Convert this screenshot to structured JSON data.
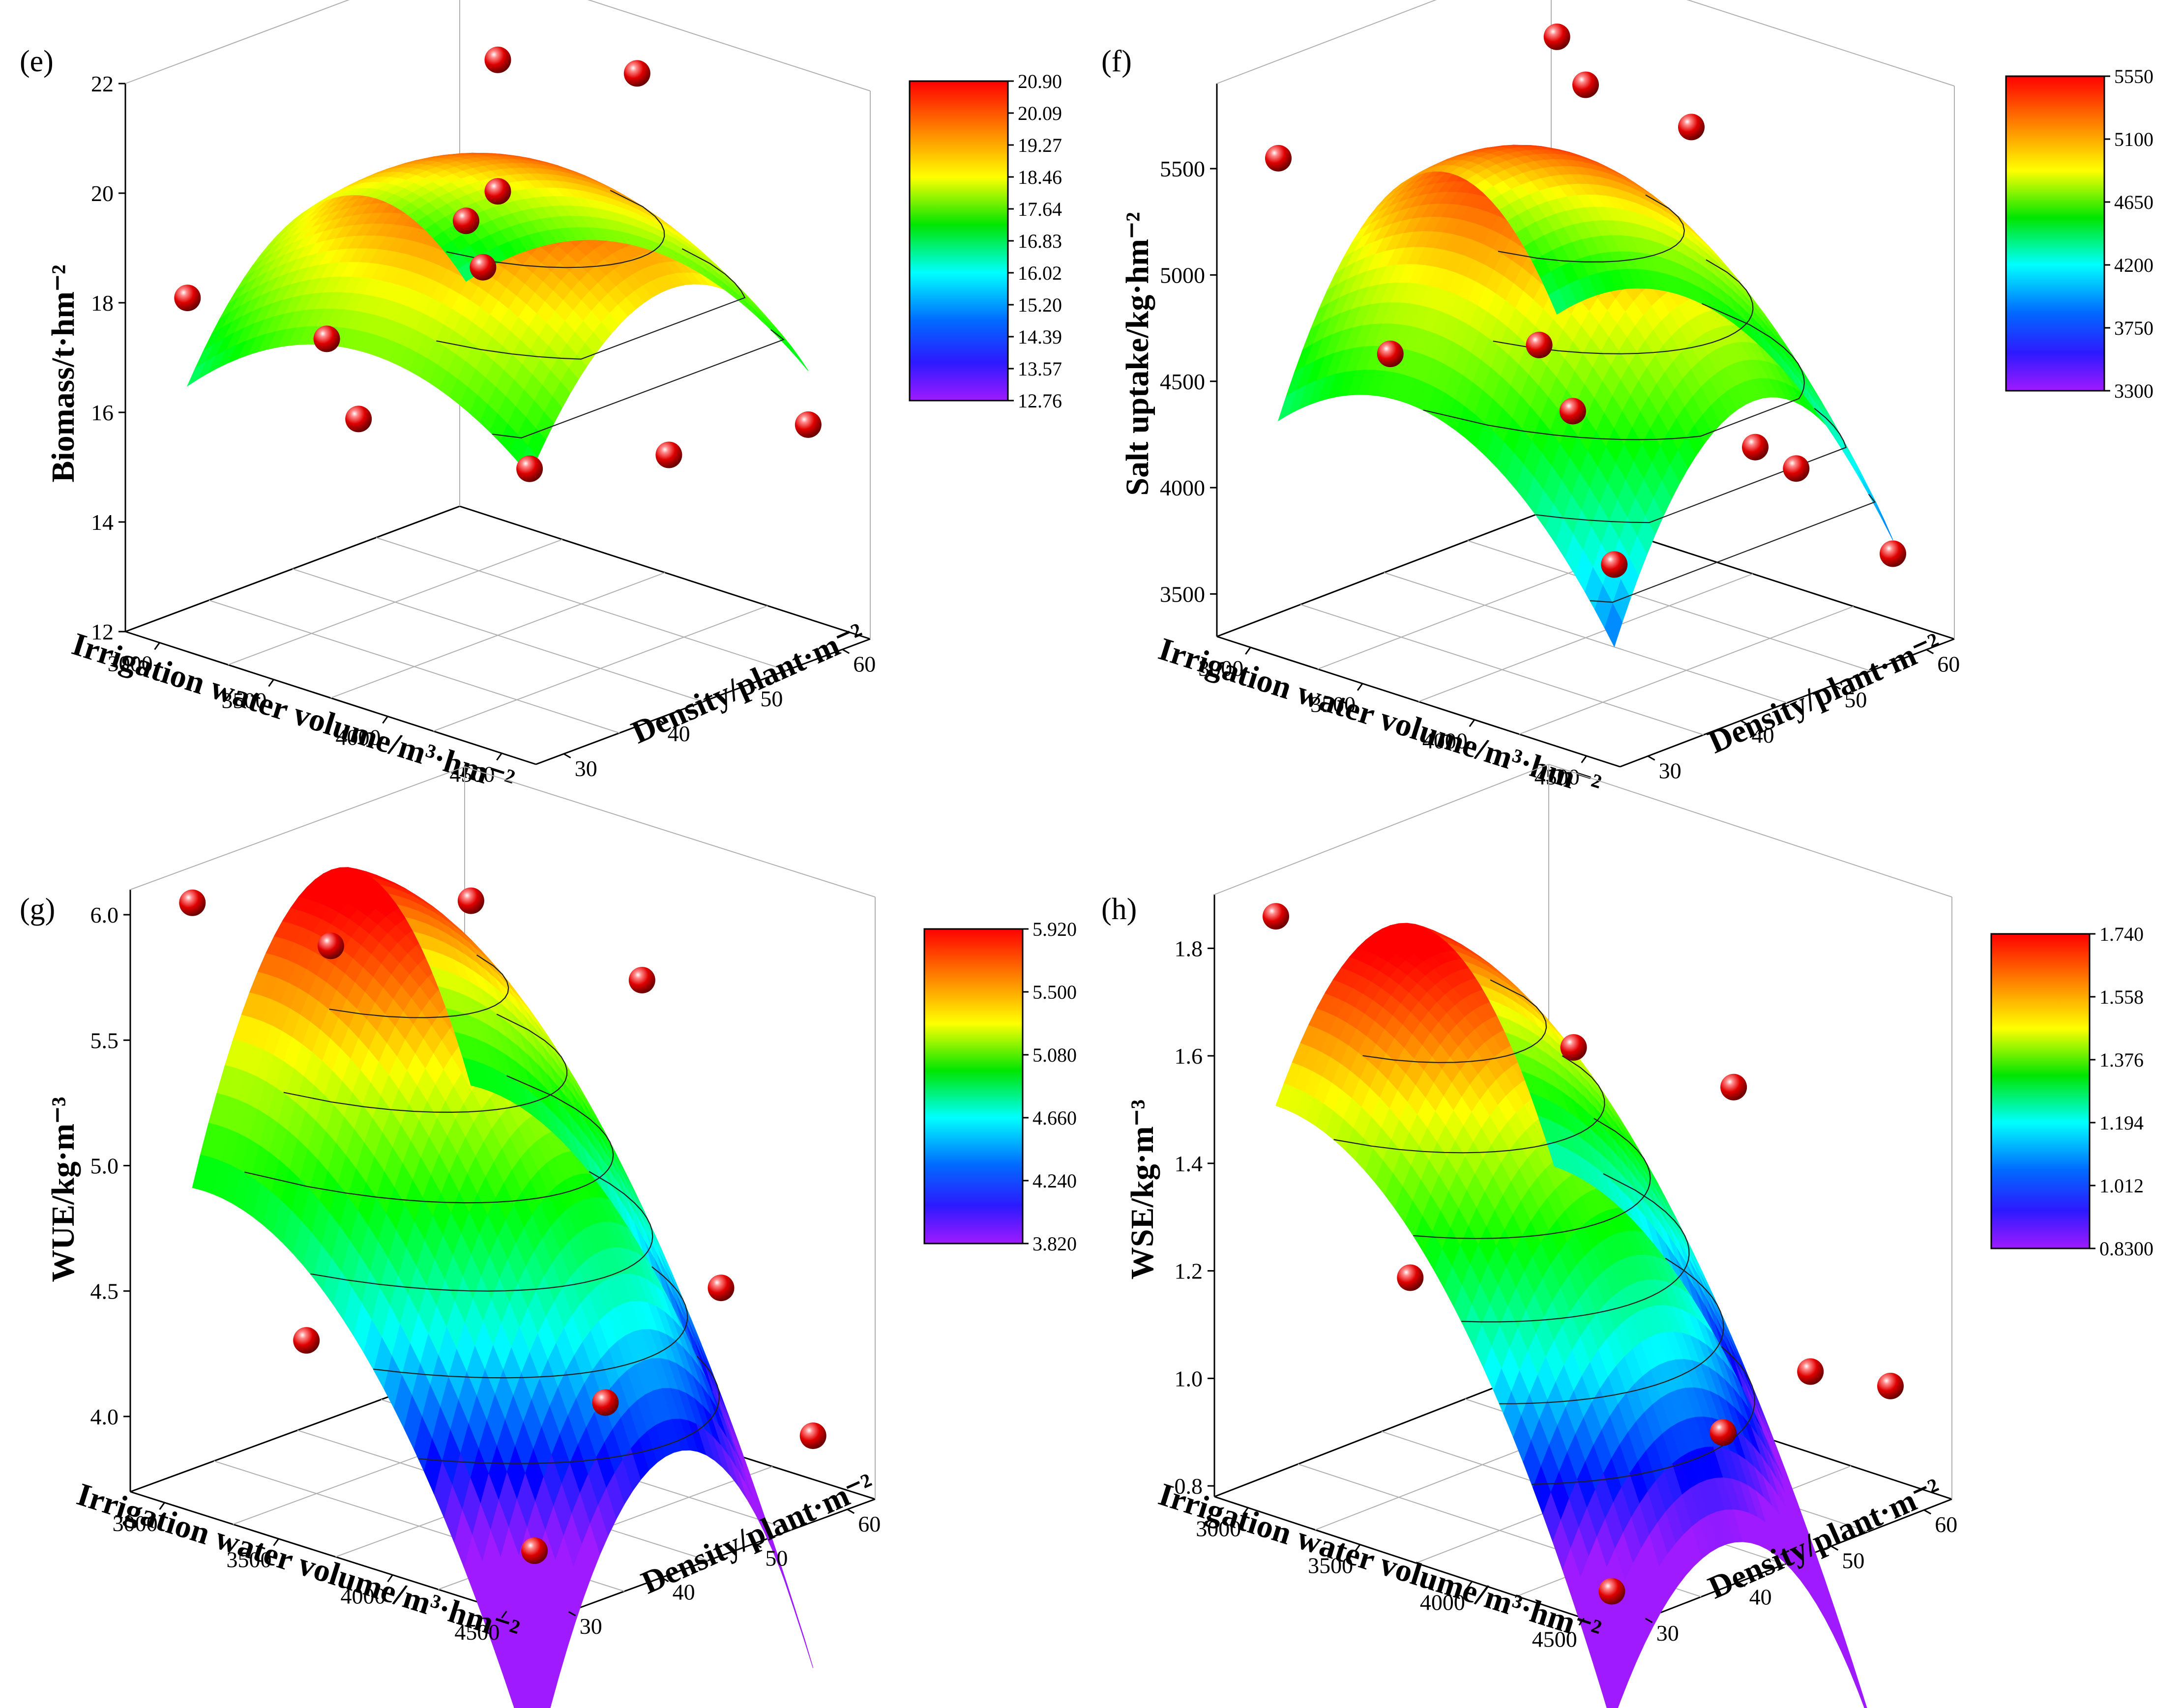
{
  "chart_data": [
    {
      "type": "surface3d",
      "panel": "(e)",
      "xlabel": "Irrigation water volume/m³·hm⁻²",
      "ylabel": "Density/plant·m⁻²",
      "zlabel": "Biomass/t·hm⁻²",
      "x_ticks": [
        "3000",
        "3500",
        "4000",
        "4500"
      ],
      "y_ticks": [
        "30",
        "40",
        "50",
        "60"
      ],
      "z_ticks": [
        "12",
        "14",
        "16",
        "18",
        "20",
        "22"
      ],
      "xlim": [
        2850,
        4650
      ],
      "ylim": [
        27,
        63
      ],
      "zlim": [
        12,
        22
      ],
      "surface": {
        "zc": 20.6,
        "xc": 3800,
        "yc": 45,
        "ax": 2.6,
        "ay": 3.1
      },
      "colorbar": {
        "ticks": [
          "20.90",
          "20.09",
          "19.27",
          "18.46",
          "17.64",
          "16.83",
          "16.02",
          "15.20",
          "14.39",
          "13.57",
          "12.76"
        ],
        "min": 12.76,
        "max": 20.9
      },
      "points": [
        {
          "x": 3000,
          "y": 30,
          "z": 18.1
        },
        {
          "x": 4500,
          "y": 30,
          "z": 17.0
        },
        {
          "x": 3000,
          "y": 60,
          "z": 17.6
        },
        {
          "x": 4500,
          "y": 60,
          "z": 15.9
        },
        {
          "x": 3000,
          "y": 45,
          "z": 16.4
        },
        {
          "x": 4500,
          "y": 45,
          "z": 16.3
        },
        {
          "x": 3750,
          "y": 30,
          "z": 16.9
        },
        {
          "x": 3750,
          "y": 60,
          "z": 21.3
        },
        {
          "x": 3750,
          "y": 45,
          "z": 22.5
        },
        {
          "x": 3750,
          "y": 45,
          "z": 20.1
        },
        {
          "x": 3400,
          "y": 52,
          "z": 17.8
        }
      ]
    },
    {
      "type": "surface3d",
      "panel": "(f)",
      "xlabel": "Irrigation water volume/m³·hm⁻²",
      "ylabel": "Density/plant·m⁻²",
      "zlabel": "Salt uptake/kg·hm⁻²",
      "x_ticks": [
        "3000",
        "3500",
        "4000",
        "4500"
      ],
      "y_ticks": [
        "30",
        "40",
        "50",
        "60"
      ],
      "z_ticks": [
        "3500",
        "4000",
        "4500",
        "5000",
        "5500"
      ],
      "xlim": [
        2850,
        4650
      ],
      "ylim": [
        27,
        63
      ],
      "zlim": [
        3300,
        5900
      ],
      "surface": {
        "zc": 5500,
        "xc": 3550,
        "yc": 45,
        "ax": 920,
        "ay": 1150
      },
      "colorbar": {
        "ticks": [
          "5550",
          "5100",
          "4650",
          "4200",
          "3750",
          "3300"
        ],
        "min": 3300,
        "max": 5550
      },
      "points": [
        {
          "x": 3000,
          "y": 30,
          "z": 5550
        },
        {
          "x": 4500,
          "y": 30,
          "z": 4150
        },
        {
          "x": 3000,
          "y": 60,
          "z": 5620
        },
        {
          "x": 4500,
          "y": 60,
          "z": 3700
        },
        {
          "x": 3500,
          "y": 30,
          "z": 4800
        },
        {
          "x": 3750,
          "y": 40,
          "z": 4760
        },
        {
          "x": 3900,
          "y": 40,
          "z": 4500
        },
        {
          "x": 3750,
          "y": 45,
          "z": 5900
        },
        {
          "x": 4300,
          "y": 50,
          "z": 4300
        },
        {
          "x": 4400,
          "y": 52,
          "z": 4200
        },
        {
          "x": 3600,
          "y": 60,
          "z": 5400
        }
      ]
    },
    {
      "type": "surface3d",
      "panel": "(g)",
      "xlabel": "Irrigation water volume/m³·hm⁻²",
      "ylabel": "Density/plant·m⁻²",
      "zlabel": "WUE/kg·m⁻³",
      "x_ticks": [
        "3000",
        "3500",
        "4000",
        "4500"
      ],
      "y_ticks": [
        "30",
        "40",
        "50",
        "60"
      ],
      "z_ticks": [
        "4.0",
        "4.5",
        "5.0",
        "5.5",
        "6.0"
      ],
      "xlim": [
        2850,
        4650
      ],
      "ylim": [
        27,
        63
      ],
      "zlim": [
        3.7,
        6.1
      ],
      "surface": {
        "zc": 5.98,
        "xc": 3050,
        "yc": 45,
        "ax": 0.9,
        "ay": 1.35
      },
      "colorbar": {
        "ticks": [
          "5.920",
          "5.500",
          "5.080",
          "4.660",
          "4.240",
          "3.820"
        ],
        "min": 3.82,
        "max": 5.92
      },
      "points": [
        {
          "x": 3000,
          "y": 30,
          "z": 6.05
        },
        {
          "x": 4500,
          "y": 30,
          "z": 3.9
        },
        {
          "x": 3000,
          "y": 60,
          "z": 5.65
        },
        {
          "x": 4500,
          "y": 60,
          "z": 3.95
        },
        {
          "x": 3500,
          "y": 30,
          "z": 4.45
        },
        {
          "x": 3750,
          "y": 60,
          "z": 5.55
        },
        {
          "x": 4300,
          "y": 55,
          "z": 4.55
        },
        {
          "x": 4200,
          "y": 45,
          "z": 4.2
        },
        {
          "x": 3200,
          "y": 40,
          "z": 5.8
        }
      ]
    },
    {
      "type": "surface3d",
      "panel": "(h)",
      "xlabel": "Irrigation water volume/m³·hm⁻²",
      "ylabel": "Density/plant·m⁻²",
      "zlabel": "WSE/kg·m⁻³",
      "x_ticks": [
        "3000",
        "3500",
        "4000",
        "4500"
      ],
      "y_ticks": [
        "30",
        "40",
        "50",
        "60"
      ],
      "z_ticks": [
        "0.8",
        "1.0",
        "1.2",
        "1.4",
        "1.6",
        "1.8"
      ],
      "xlim": [
        2850,
        4650
      ],
      "ylim": [
        27,
        63
      ],
      "zlim": [
        0.78,
        1.9
      ],
      "surface": {
        "zc": 1.76,
        "xc": 3000,
        "yc": 42,
        "ax": 0.42,
        "ay": 0.5
      },
      "colorbar": {
        "ticks": [
          "1.740",
          "1.558",
          "1.376",
          "1.194",
          "1.012",
          "0.8300"
        ],
        "min": 0.83,
        "max": 1.74
      },
      "points": [
        {
          "x": 3000,
          "y": 30,
          "z": 1.86
        },
        {
          "x": 4500,
          "y": 30,
          "z": 0.81
        },
        {
          "x": 3600,
          "y": 30,
          "z": 1.27
        },
        {
          "x": 3500,
          "y": 50,
          "z": 1.55
        },
        {
          "x": 3800,
          "y": 60,
          "z": 1.45
        },
        {
          "x": 4250,
          "y": 48,
          "z": 0.95
        },
        {
          "x": 4500,
          "y": 60,
          "z": 0.99
        },
        {
          "x": 4350,
          "y": 55,
          "z": 1.03
        }
      ]
    }
  ]
}
